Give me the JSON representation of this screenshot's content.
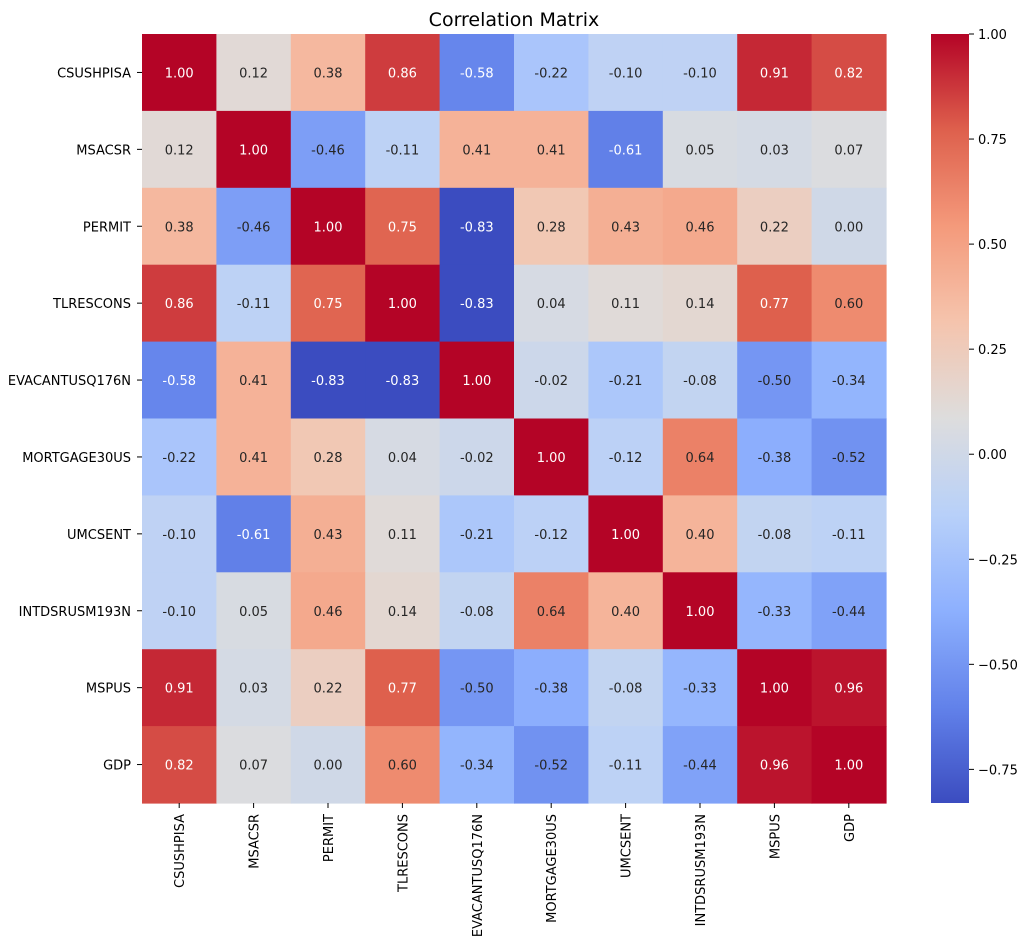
{
  "chart_data": {
    "type": "heatmap",
    "title": "Correlation Matrix",
    "colormap": "coolwarm",
    "labels": [
      "CSUSHPISA",
      "MSACSR",
      "PERMIT",
      "TLRESCONS",
      "EVACANTUSQ176N",
      "MORTGAGE30US",
      "UMCSENT",
      "INTDSRUSM193N",
      "MSPUS",
      "GDP"
    ],
    "values": [
      [
        1.0,
        0.12,
        0.38,
        0.86,
        -0.58,
        -0.22,
        -0.1,
        -0.1,
        0.91,
        0.82
      ],
      [
        0.12,
        1.0,
        -0.46,
        -0.11,
        0.41,
        0.41,
        -0.61,
        0.05,
        0.03,
        0.07
      ],
      [
        0.38,
        -0.46,
        1.0,
        0.75,
        -0.83,
        0.28,
        0.43,
        0.46,
        0.22,
        0.0
      ],
      [
        0.86,
        -0.11,
        0.75,
        1.0,
        -0.83,
        0.04,
        0.11,
        0.14,
        0.77,
        0.6
      ],
      [
        -0.58,
        0.41,
        -0.83,
        -0.83,
        1.0,
        -0.02,
        -0.21,
        -0.08,
        -0.5,
        -0.34
      ],
      [
        -0.22,
        0.41,
        0.28,
        0.04,
        -0.02,
        1.0,
        -0.12,
        0.64,
        -0.38,
        -0.52
      ],
      [
        -0.1,
        -0.61,
        0.43,
        0.11,
        -0.21,
        -0.12,
        1.0,
        0.4,
        -0.08,
        -0.11
      ],
      [
        -0.1,
        0.05,
        0.46,
        0.14,
        -0.08,
        0.64,
        0.4,
        1.0,
        -0.33,
        -0.44
      ],
      [
        0.91,
        0.03,
        0.22,
        0.77,
        -0.5,
        -0.38,
        -0.08,
        -0.33,
        1.0,
        0.96
      ],
      [
        0.82,
        0.07,
        0.0,
        0.6,
        -0.34,
        -0.52,
        -0.11,
        -0.44,
        0.96,
        1.0
      ]
    ],
    "value_format_decimals": 2,
    "colorbar": {
      "vmin": -0.83,
      "vmax": 1.0,
      "ticks": [
        1.0,
        0.75,
        0.5,
        0.25,
        0.0,
        -0.25,
        -0.5,
        -0.75
      ],
      "tick_labels": [
        "1.00",
        "0.75",
        "0.50",
        "0.25",
        "0.00",
        "−0.25",
        "−0.50",
        "−0.75"
      ]
    }
  }
}
